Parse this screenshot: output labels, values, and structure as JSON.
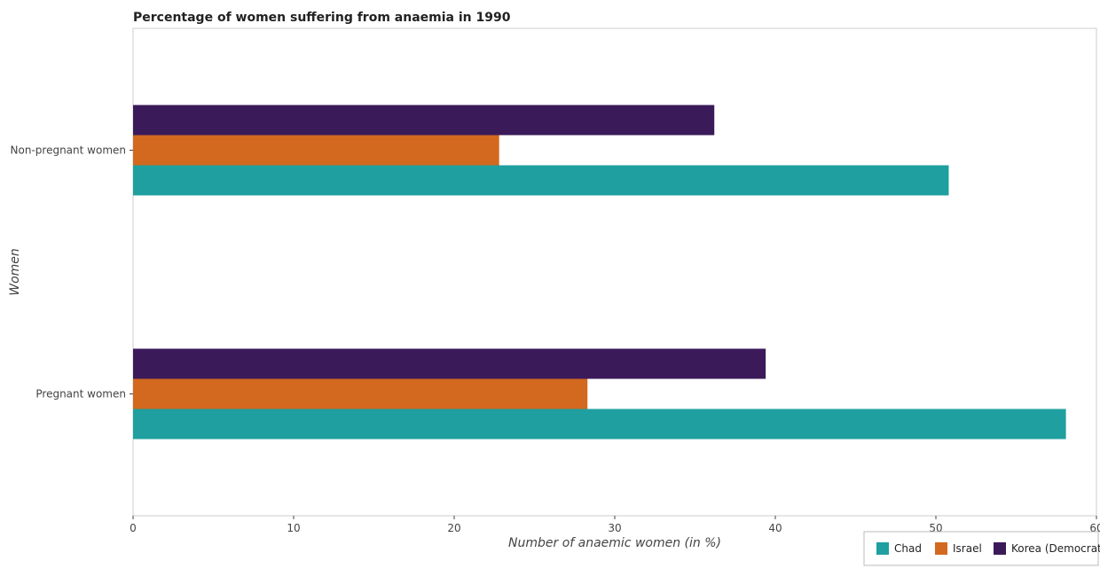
{
  "chart_data": {
    "type": "bar",
    "orientation": "horizontal",
    "title": "Percentage of women suffering from anaemia in 1990",
    "xlabel": "Number of anaemic women (in %)",
    "ylabel": "Women",
    "categories": [
      "Non-pregnant women",
      "Pregnant women"
    ],
    "series": [
      {
        "name": "Chad",
        "color": "#1f9f9f",
        "values": [
          50.8,
          58.1
        ]
      },
      {
        "name": "Israel",
        "color": "#d2691e",
        "values": [
          22.8,
          28.3
        ]
      },
      {
        "name": "Korea (Democratic)",
        "color": "#3b1a5a",
        "values": [
          36.2,
          39.4
        ]
      }
    ],
    "xlim": [
      0,
      60
    ],
    "xticks": [
      0,
      10,
      20,
      30,
      40,
      50,
      60
    ],
    "grid": false,
    "legend_position": "bottom-right"
  }
}
